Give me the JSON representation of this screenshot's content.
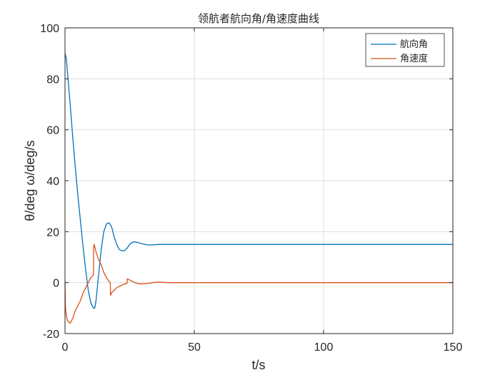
{
  "chart_data": {
    "type": "line",
    "title": "领航者航向角/角速度曲线",
    "xlabel": "t/s",
    "ylabel": "θ/deg ω/deg/s",
    "xlim": [
      0,
      150
    ],
    "ylim": [
      -20,
      100
    ],
    "xticks": [
      0,
      50,
      100,
      150
    ],
    "yticks": [
      -20,
      0,
      20,
      40,
      60,
      80,
      100
    ],
    "grid": true,
    "legend_position": "top-right",
    "series": [
      {
        "name": "航向角",
        "color": "#0072BD",
        "x": [
          0,
          0.5,
          1,
          2,
          3,
          4,
          5,
          6,
          7,
          8,
          9,
          10,
          11,
          11.5,
          12,
          13,
          14,
          15,
          16,
          17,
          18,
          19,
          20,
          21,
          22,
          23,
          24,
          25,
          26,
          27,
          28,
          29,
          30,
          31,
          32,
          34,
          36,
          38,
          40,
          45,
          50,
          60,
          80,
          100,
          120,
          150
        ],
        "y": [
          90,
          88,
          82,
          70,
          57,
          45,
          34,
          24,
          14,
          5,
          -3,
          -8,
          -10,
          -10,
          -7,
          3,
          13,
          20,
          23,
          23.5,
          22,
          18,
          15,
          13,
          12.5,
          12.5,
          13.5,
          15,
          15.8,
          16,
          15.8,
          15.5,
          15.2,
          15,
          14.8,
          14.8,
          15,
          15,
          15,
          15,
          15,
          15,
          15,
          15,
          15,
          15
        ]
      },
      {
        "name": "角速度",
        "color": "#D95319",
        "x": [
          0,
          0.2,
          0.5,
          1,
          2,
          3,
          4,
          5,
          6,
          7,
          8,
          9,
          10,
          11,
          11.1,
          11.3,
          12,
          13,
          14,
          15,
          16,
          17,
          17.5,
          17.6,
          18,
          19,
          20,
          21,
          22,
          23,
          24,
          24.1,
          25,
          26,
          27,
          28,
          29,
          30,
          31,
          32,
          34,
          36,
          38,
          40,
          43,
          46,
          50,
          60,
          80,
          100,
          120,
          150
        ],
        "y": [
          0,
          -10,
          -13,
          -15,
          -16,
          -14,
          -11,
          -9,
          -7,
          -4,
          -2,
          0,
          2,
          3,
          14,
          15,
          12,
          9,
          7,
          4,
          2,
          0.5,
          0,
          -5,
          -4,
          -3,
          -2,
          -1.5,
          -1,
          -0.5,
          -0.3,
          1.5,
          1,
          0.5,
          0,
          -0.3,
          -0.5,
          -0.5,
          -0.4,
          -0.3,
          0,
          0.2,
          0.1,
          0,
          0,
          0,
          0,
          0,
          0,
          0,
          0,
          0
        ]
      }
    ]
  }
}
